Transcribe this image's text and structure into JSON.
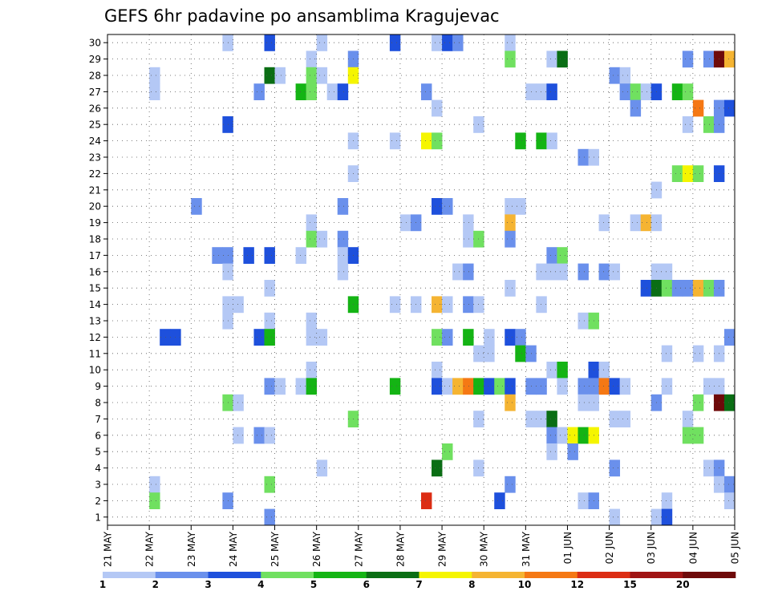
{
  "chart_data": {
    "type": "heatmap",
    "title": "GEFS 6hr padavine po ansamblima Kragujevac",
    "xlabel": "",
    "ylabel": "",
    "x_tick_labels": [
      "21 MAY",
      "22 MAY",
      "23 MAY",
      "24 MAY",
      "25 MAY",
      "26 MAY",
      "27 MAY",
      "28 MAY",
      "29 MAY",
      "30 MAY",
      "31 MAY",
      "01 JUN",
      "02 JUN",
      "03 JUN",
      "04 JUN",
      "05 JUN"
    ],
    "y_tick_labels": [
      "1",
      "2",
      "3",
      "4",
      "5",
      "6",
      "7",
      "8",
      "9",
      "10",
      "11",
      "12",
      "13",
      "14",
      "15",
      "16",
      "17",
      "18",
      "19",
      "20",
      "21",
      "22",
      "23",
      "24",
      "25",
      "26",
      "27",
      "28",
      "29",
      "30"
    ],
    "steps_per_day": 4,
    "n_steps": 60,
    "legend": {
      "thresholds": [
        "1",
        "2",
        "3",
        "4",
        "5",
        "6",
        "7",
        "8",
        "10",
        "12",
        "15",
        "20"
      ],
      "colors": [
        "#b4c8f5",
        "#6a90ec",
        "#1e50dc",
        "#70e060",
        "#14b414",
        "#0a6e14",
        "#f5f500",
        "#f5b432",
        "#f57814",
        "#dc2d14",
        "#a01414",
        "#6e0a0a"
      ]
    },
    "cells": [
      {
        "m": 30,
        "t": 11,
        "c": 0
      },
      {
        "m": 30,
        "t": 15,
        "c": 2
      },
      {
        "m": 30,
        "t": 20,
        "c": 0
      },
      {
        "m": 30,
        "t": 27,
        "c": 2
      },
      {
        "m": 30,
        "t": 31,
        "c": 0
      },
      {
        "m": 30,
        "t": 32,
        "c": 2
      },
      {
        "m": 30,
        "t": 33,
        "c": 1
      },
      {
        "m": 30,
        "t": 38,
        "c": 0
      },
      {
        "m": 29,
        "t": 19,
        "c": 0
      },
      {
        "m": 29,
        "t": 23,
        "c": 1
      },
      {
        "m": 29,
        "t": 38,
        "c": 3
      },
      {
        "m": 29,
        "t": 42,
        "c": 0
      },
      {
        "m": 29,
        "t": 43,
        "c": 5
      },
      {
        "m": 29,
        "t": 55,
        "c": 1
      },
      {
        "m": 29,
        "t": 57,
        "c": 1
      },
      {
        "m": 29,
        "t": 58,
        "c": 11
      },
      {
        "m": 29,
        "t": 59,
        "c": 7
      },
      {
        "m": 28,
        "t": 4,
        "c": 0
      },
      {
        "m": 28,
        "t": 15,
        "c": 5
      },
      {
        "m": 28,
        "t": 16,
        "c": 0
      },
      {
        "m": 28,
        "t": 19,
        "c": 3
      },
      {
        "m": 28,
        "t": 20,
        "c": 0
      },
      {
        "m": 28,
        "t": 23,
        "c": 6
      },
      {
        "m": 28,
        "t": 48,
        "c": 1
      },
      {
        "m": 28,
        "t": 49,
        "c": 0
      },
      {
        "m": 27,
        "t": 4,
        "c": 0
      },
      {
        "m": 27,
        "t": 14,
        "c": 1
      },
      {
        "m": 27,
        "t": 18,
        "c": 4
      },
      {
        "m": 27,
        "t": 19,
        "c": 3
      },
      {
        "m": 27,
        "t": 21,
        "c": 0
      },
      {
        "m": 27,
        "t": 22,
        "c": 2
      },
      {
        "m": 27,
        "t": 30,
        "c": 1
      },
      {
        "m": 27,
        "t": 40,
        "c": 0
      },
      {
        "m": 27,
        "t": 41,
        "c": 0
      },
      {
        "m": 27,
        "t": 42,
        "c": 2
      },
      {
        "m": 27,
        "t": 49,
        "c": 1
      },
      {
        "m": 27,
        "t": 50,
        "c": 3
      },
      {
        "m": 27,
        "t": 51,
        "c": 0
      },
      {
        "m": 27,
        "t": 52,
        "c": 2
      },
      {
        "m": 27,
        "t": 54,
        "c": 4
      },
      {
        "m": 27,
        "t": 55,
        "c": 3
      },
      {
        "m": 26,
        "t": 31,
        "c": 0
      },
      {
        "m": 26,
        "t": 50,
        "c": 1
      },
      {
        "m": 26,
        "t": 56,
        "c": 8
      },
      {
        "m": 26,
        "t": 58,
        "c": 1
      },
      {
        "m": 26,
        "t": 59,
        "c": 2
      },
      {
        "m": 25,
        "t": 11,
        "c": 2
      },
      {
        "m": 25,
        "t": 35,
        "c": 0
      },
      {
        "m": 25,
        "t": 55,
        "c": 0
      },
      {
        "m": 25,
        "t": 57,
        "c": 3
      },
      {
        "m": 25,
        "t": 58,
        "c": 1
      },
      {
        "m": 24,
        "t": 23,
        "c": 0
      },
      {
        "m": 24,
        "t": 27,
        "c": 0
      },
      {
        "m": 24,
        "t": 30,
        "c": 6
      },
      {
        "m": 24,
        "t": 31,
        "c": 3
      },
      {
        "m": 24,
        "t": 39,
        "c": 4
      },
      {
        "m": 24,
        "t": 41,
        "c": 4
      },
      {
        "m": 24,
        "t": 42,
        "c": 0
      },
      {
        "m": 23,
        "t": 45,
        "c": 1
      },
      {
        "m": 23,
        "t": 46,
        "c": 0
      },
      {
        "m": 22,
        "t": 23,
        "c": 0
      },
      {
        "m": 22,
        "t": 54,
        "c": 3
      },
      {
        "m": 22,
        "t": 55,
        "c": 6
      },
      {
        "m": 22,
        "t": 56,
        "c": 3
      },
      {
        "m": 22,
        "t": 58,
        "c": 2
      },
      {
        "m": 21,
        "t": 52,
        "c": 0
      },
      {
        "m": 20,
        "t": 8,
        "c": 1
      },
      {
        "m": 20,
        "t": 22,
        "c": 1
      },
      {
        "m": 20,
        "t": 31,
        "c": 2
      },
      {
        "m": 20,
        "t": 32,
        "c": 1
      },
      {
        "m": 20,
        "t": 38,
        "c": 0
      },
      {
        "m": 20,
        "t": 39,
        "c": 0
      },
      {
        "m": 19,
        "t": 19,
        "c": 0
      },
      {
        "m": 19,
        "t": 28,
        "c": 0
      },
      {
        "m": 19,
        "t": 29,
        "c": 1
      },
      {
        "m": 19,
        "t": 34,
        "c": 0
      },
      {
        "m": 19,
        "t": 38,
        "c": 7
      },
      {
        "m": 19,
        "t": 47,
        "c": 0
      },
      {
        "m": 19,
        "t": 50,
        "c": 0
      },
      {
        "m": 19,
        "t": 51,
        "c": 7
      },
      {
        "m": 19,
        "t": 52,
        "c": 0
      },
      {
        "m": 18,
        "t": 19,
        "c": 3
      },
      {
        "m": 18,
        "t": 20,
        "c": 0
      },
      {
        "m": 18,
        "t": 22,
        "c": 1
      },
      {
        "m": 18,
        "t": 34,
        "c": 0
      },
      {
        "m": 18,
        "t": 35,
        "c": 3
      },
      {
        "m": 18,
        "t": 38,
        "c": 1
      },
      {
        "m": 17,
        "t": 10,
        "c": 1
      },
      {
        "m": 17,
        "t": 11,
        "c": 1
      },
      {
        "m": 17,
        "t": 13,
        "c": 2
      },
      {
        "m": 17,
        "t": 15,
        "c": 2
      },
      {
        "m": 17,
        "t": 18,
        "c": 0
      },
      {
        "m": 17,
        "t": 22,
        "c": 0
      },
      {
        "m": 17,
        "t": 23,
        "c": 2
      },
      {
        "m": 17,
        "t": 42,
        "c": 1
      },
      {
        "m": 17,
        "t": 43,
        "c": 3
      },
      {
        "m": 16,
        "t": 11,
        "c": 0
      },
      {
        "m": 16,
        "t": 22,
        "c": 0
      },
      {
        "m": 16,
        "t": 33,
        "c": 0
      },
      {
        "m": 16,
        "t": 34,
        "c": 1
      },
      {
        "m": 16,
        "t": 41,
        "c": 0
      },
      {
        "m": 16,
        "t": 42,
        "c": 0
      },
      {
        "m": 16,
        "t": 43,
        "c": 0
      },
      {
        "m": 16,
        "t": 45,
        "c": 1
      },
      {
        "m": 16,
        "t": 47,
        "c": 1
      },
      {
        "m": 16,
        "t": 48,
        "c": 0
      },
      {
        "m": 16,
        "t": 52,
        "c": 0
      },
      {
        "m": 16,
        "t": 53,
        "c": 0
      },
      {
        "m": 15,
        "t": 15,
        "c": 0
      },
      {
        "m": 15,
        "t": 38,
        "c": 0
      },
      {
        "m": 15,
        "t": 51,
        "c": 2
      },
      {
        "m": 15,
        "t": 52,
        "c": 5
      },
      {
        "m": 15,
        "t": 53,
        "c": 3
      },
      {
        "m": 15,
        "t": 54,
        "c": 1
      },
      {
        "m": 15,
        "t": 55,
        "c": 1
      },
      {
        "m": 15,
        "t": 56,
        "c": 7
      },
      {
        "m": 15,
        "t": 57,
        "c": 3
      },
      {
        "m": 15,
        "t": 58,
        "c": 1
      },
      {
        "m": 14,
        "t": 11,
        "c": 0
      },
      {
        "m": 14,
        "t": 12,
        "c": 0
      },
      {
        "m": 14,
        "t": 23,
        "c": 4
      },
      {
        "m": 14,
        "t": 27,
        "c": 0
      },
      {
        "m": 14,
        "t": 29,
        "c": 0
      },
      {
        "m": 14,
        "t": 31,
        "c": 7
      },
      {
        "m": 14,
        "t": 32,
        "c": 0
      },
      {
        "m": 14,
        "t": 34,
        "c": 1
      },
      {
        "m": 14,
        "t": 35,
        "c": 0
      },
      {
        "m": 14,
        "t": 41,
        "c": 0
      },
      {
        "m": 13,
        "t": 11,
        "c": 0
      },
      {
        "m": 13,
        "t": 15,
        "c": 0
      },
      {
        "m": 13,
        "t": 19,
        "c": 0
      },
      {
        "m": 13,
        "t": 45,
        "c": 0
      },
      {
        "m": 13,
        "t": 46,
        "c": 3
      },
      {
        "m": 12,
        "t": 5,
        "c": 2
      },
      {
        "m": 12,
        "t": 6,
        "c": 2
      },
      {
        "m": 12,
        "t": 14,
        "c": 2
      },
      {
        "m": 12,
        "t": 15,
        "c": 4
      },
      {
        "m": 12,
        "t": 19,
        "c": 0
      },
      {
        "m": 12,
        "t": 20,
        "c": 0
      },
      {
        "m": 12,
        "t": 31,
        "c": 3
      },
      {
        "m": 12,
        "t": 32,
        "c": 1
      },
      {
        "m": 12,
        "t": 34,
        "c": 4
      },
      {
        "m": 12,
        "t": 36,
        "c": 0
      },
      {
        "m": 12,
        "t": 38,
        "c": 2
      },
      {
        "m": 12,
        "t": 39,
        "c": 1
      },
      {
        "m": 12,
        "t": 59,
        "c": 1
      },
      {
        "m": 11,
        "t": 35,
        "c": 0
      },
      {
        "m": 11,
        "t": 36,
        "c": 0
      },
      {
        "m": 11,
        "t": 39,
        "c": 4
      },
      {
        "m": 11,
        "t": 40,
        "c": 1
      },
      {
        "m": 11,
        "t": 53,
        "c": 0
      },
      {
        "m": 11,
        "t": 56,
        "c": 0
      },
      {
        "m": 11,
        "t": 58,
        "c": 0
      },
      {
        "m": 10,
        "t": 19,
        "c": 0
      },
      {
        "m": 10,
        "t": 31,
        "c": 0
      },
      {
        "m": 10,
        "t": 42,
        "c": 0
      },
      {
        "m": 10,
        "t": 43,
        "c": 4
      },
      {
        "m": 10,
        "t": 46,
        "c": 2
      },
      {
        "m": 10,
        "t": 47,
        "c": 0
      },
      {
        "m": 9,
        "t": 15,
        "c": 1
      },
      {
        "m": 9,
        "t": 16,
        "c": 0
      },
      {
        "m": 9,
        "t": 18,
        "c": 0
      },
      {
        "m": 9,
        "t": 19,
        "c": 4
      },
      {
        "m": 9,
        "t": 27,
        "c": 4
      },
      {
        "m": 9,
        "t": 31,
        "c": 2
      },
      {
        "m": 9,
        "t": 32,
        "c": 0
      },
      {
        "m": 9,
        "t": 33,
        "c": 7
      },
      {
        "m": 9,
        "t": 34,
        "c": 8
      },
      {
        "m": 9,
        "t": 35,
        "c": 4
      },
      {
        "m": 9,
        "t": 36,
        "c": 2
      },
      {
        "m": 9,
        "t": 37,
        "c": 3
      },
      {
        "m": 9,
        "t": 38,
        "c": 2
      },
      {
        "m": 9,
        "t": 40,
        "c": 1
      },
      {
        "m": 9,
        "t": 41,
        "c": 1
      },
      {
        "m": 9,
        "t": 43,
        "c": 0
      },
      {
        "m": 9,
        "t": 45,
        "c": 1
      },
      {
        "m": 9,
        "t": 46,
        "c": 1
      },
      {
        "m": 9,
        "t": 47,
        "c": 8
      },
      {
        "m": 9,
        "t": 48,
        "c": 2
      },
      {
        "m": 9,
        "t": 49,
        "c": 0
      },
      {
        "m": 9,
        "t": 53,
        "c": 0
      },
      {
        "m": 9,
        "t": 57,
        "c": 0
      },
      {
        "m": 9,
        "t": 58,
        "c": 0
      },
      {
        "m": 8,
        "t": 11,
        "c": 3
      },
      {
        "m": 8,
        "t": 12,
        "c": 0
      },
      {
        "m": 8,
        "t": 38,
        "c": 7
      },
      {
        "m": 8,
        "t": 45,
        "c": 0
      },
      {
        "m": 8,
        "t": 46,
        "c": 0
      },
      {
        "m": 8,
        "t": 52,
        "c": 1
      },
      {
        "m": 8,
        "t": 56,
        "c": 3
      },
      {
        "m": 8,
        "t": 58,
        "c": 11
      },
      {
        "m": 8,
        "t": 59,
        "c": 5
      },
      {
        "m": 7,
        "t": 23,
        "c": 3
      },
      {
        "m": 7,
        "t": 35,
        "c": 0
      },
      {
        "m": 7,
        "t": 40,
        "c": 0
      },
      {
        "m": 7,
        "t": 41,
        "c": 0
      },
      {
        "m": 7,
        "t": 42,
        "c": 5
      },
      {
        "m": 7,
        "t": 48,
        "c": 0
      },
      {
        "m": 7,
        "t": 49,
        "c": 0
      },
      {
        "m": 7,
        "t": 55,
        "c": 0
      },
      {
        "m": 6,
        "t": 12,
        "c": 0
      },
      {
        "m": 6,
        "t": 14,
        "c": 1
      },
      {
        "m": 6,
        "t": 15,
        "c": 0
      },
      {
        "m": 6,
        "t": 42,
        "c": 1
      },
      {
        "m": 6,
        "t": 43,
        "c": 0
      },
      {
        "m": 6,
        "t": 44,
        "c": 6
      },
      {
        "m": 6,
        "t": 45,
        "c": 4
      },
      {
        "m": 6,
        "t": 46,
        "c": 6
      },
      {
        "m": 6,
        "t": 55,
        "c": 3
      },
      {
        "m": 6,
        "t": 56,
        "c": 3
      },
      {
        "m": 5,
        "t": 32,
        "c": 3
      },
      {
        "m": 5,
        "t": 42,
        "c": 0
      },
      {
        "m": 5,
        "t": 44,
        "c": 1
      },
      {
        "m": 4,
        "t": 20,
        "c": 0
      },
      {
        "m": 4,
        "t": 31,
        "c": 5
      },
      {
        "m": 4,
        "t": 35,
        "c": 0
      },
      {
        "m": 4,
        "t": 48,
        "c": 1
      },
      {
        "m": 4,
        "t": 57,
        "c": 0
      },
      {
        "m": 4,
        "t": 58,
        "c": 1
      },
      {
        "m": 3,
        "t": 4,
        "c": 0
      },
      {
        "m": 3,
        "t": 15,
        "c": 3
      },
      {
        "m": 3,
        "t": 38,
        "c": 1
      },
      {
        "m": 3,
        "t": 58,
        "c": 0
      },
      {
        "m": 3,
        "t": 59,
        "c": 1
      },
      {
        "m": 2,
        "t": 4,
        "c": 3
      },
      {
        "m": 2,
        "t": 11,
        "c": 1
      },
      {
        "m": 2,
        "t": 30,
        "c": 9
      },
      {
        "m": 2,
        "t": 37,
        "c": 2
      },
      {
        "m": 2,
        "t": 45,
        "c": 0
      },
      {
        "m": 2,
        "t": 46,
        "c": 1
      },
      {
        "m": 2,
        "t": 53,
        "c": 0
      },
      {
        "m": 2,
        "t": 59,
        "c": 0
      },
      {
        "m": 1,
        "t": 15,
        "c": 1
      },
      {
        "m": 1,
        "t": 48,
        "c": 0
      },
      {
        "m": 1,
        "t": 52,
        "c": 0
      },
      {
        "m": 1,
        "t": 53,
        "c": 2
      }
    ]
  }
}
